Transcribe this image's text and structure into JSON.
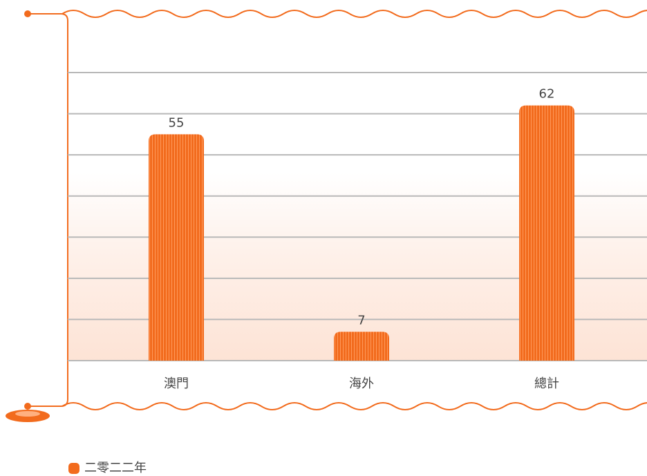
{
  "chart_data": {
    "type": "bar",
    "categories": [
      "澳門",
      "海外",
      "總計"
    ],
    "series": [
      {
        "name": "二零二二年",
        "color": "#f26b1d",
        "values": [
          55,
          7,
          62
        ]
      }
    ],
    "ylim": [
      0,
      70
    ],
    "yticks": [
      0,
      10,
      20,
      30,
      40,
      50,
      60,
      70
    ],
    "grid": true
  }
}
